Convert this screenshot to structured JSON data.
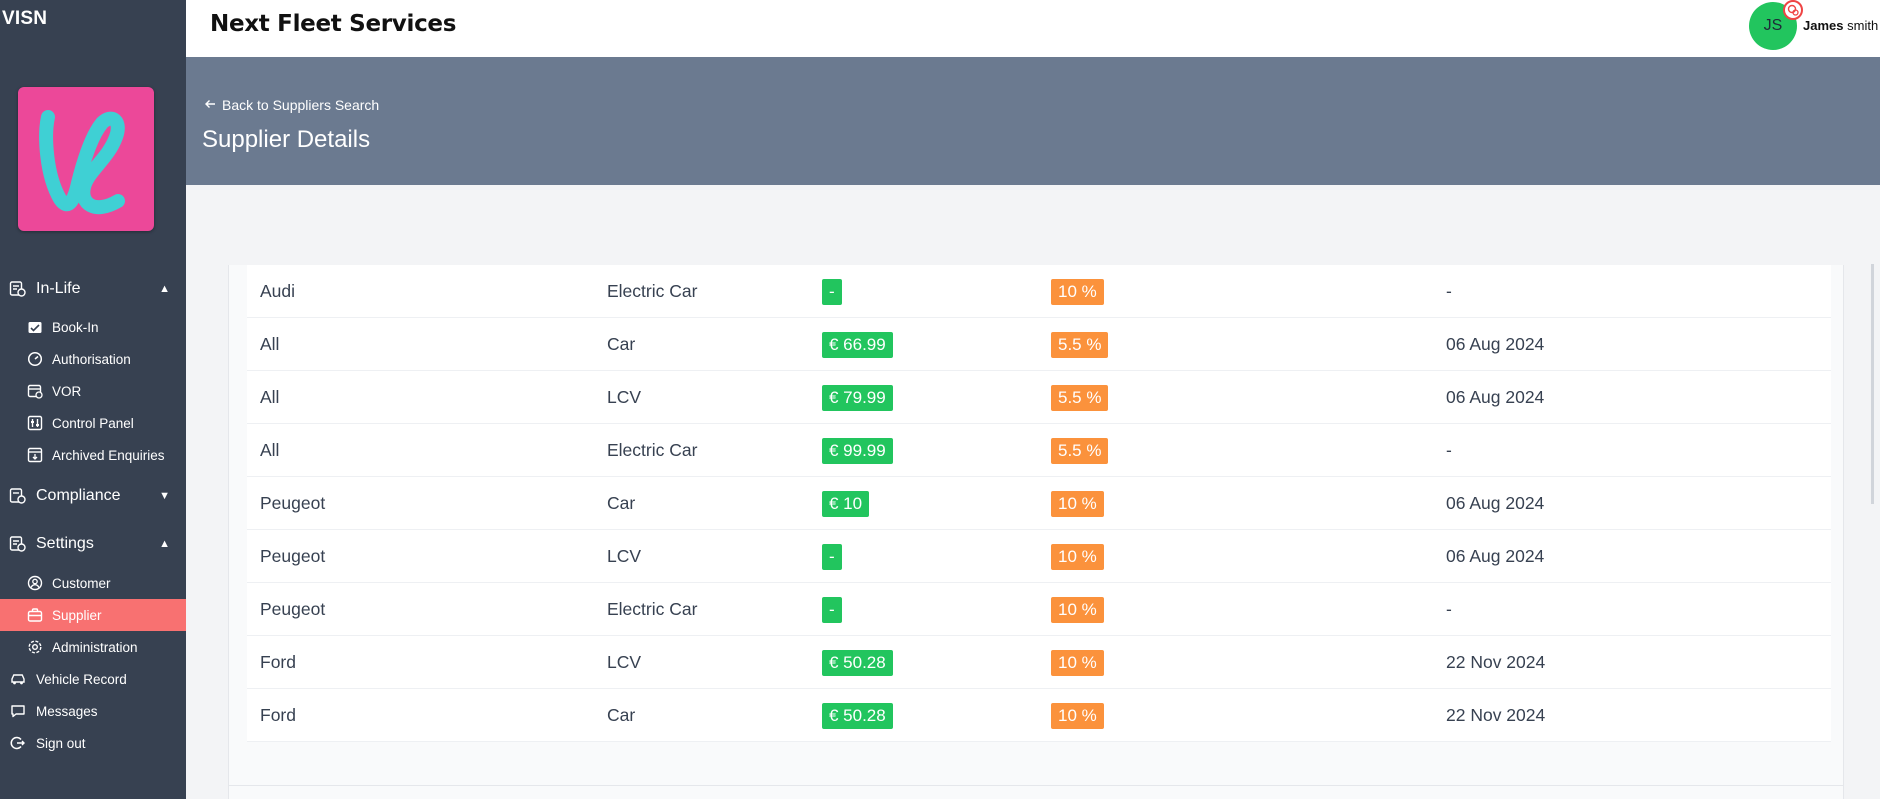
{
  "app": {
    "brand": "VISN"
  },
  "sidebar": {
    "sections": [
      {
        "label": "In-Life",
        "icon": "in-life-icon",
        "chevron": "▲"
      },
      {
        "label": "Compliance",
        "icon": "compliance-icon",
        "chevron": "▼"
      },
      {
        "label": "Settings",
        "icon": "settings-icon",
        "chevron": "▲"
      }
    ],
    "inlife_items": [
      {
        "label": "Book-In",
        "icon": "book-in-icon"
      },
      {
        "label": "Authorisation",
        "icon": "authorisation-icon"
      },
      {
        "label": "VOR",
        "icon": "vor-icon"
      },
      {
        "label": "Control Panel",
        "icon": "control-panel-icon"
      },
      {
        "label": "Archived Enquiries",
        "icon": "archive-icon"
      }
    ],
    "settings_items": [
      {
        "label": "Customer",
        "icon": "customer-icon"
      },
      {
        "label": "Supplier",
        "icon": "supplier-icon",
        "active": true
      },
      {
        "label": "Administration",
        "icon": "administration-icon"
      }
    ],
    "bottom_items": [
      {
        "label": "Vehicle Record",
        "icon": "vehicle-icon"
      },
      {
        "label": "Messages",
        "icon": "messages-icon"
      },
      {
        "label": "Sign out",
        "icon": "sign-out-icon"
      }
    ],
    "active_color": "#f87171"
  },
  "header": {
    "company": "Next Fleet Services",
    "user": {
      "initials": "JS",
      "first": "James",
      "last": "smith"
    }
  },
  "page": {
    "back_link": "Back to Suppliers Search",
    "title": "Supplier Details"
  },
  "rates_table": {
    "rows": [
      {
        "make": "Audi",
        "type": "Electric Car",
        "price": "-",
        "discount": "10 %",
        "date": "-"
      },
      {
        "make": "All",
        "type": "Car",
        "price": "€ 66.99",
        "discount": "5.5 %",
        "date": "06 Aug 2024"
      },
      {
        "make": "All",
        "type": "LCV",
        "price": "€ 79.99",
        "discount": "5.5 %",
        "date": "06 Aug 2024"
      },
      {
        "make": "All",
        "type": "Electric Car",
        "price": "€ 99.99",
        "discount": "5.5 %",
        "date": "-"
      },
      {
        "make": "Peugeot",
        "type": "Car",
        "price": "€ 10",
        "discount": "10 %",
        "date": "06 Aug 2024"
      },
      {
        "make": "Peugeot",
        "type": "LCV",
        "price": "-",
        "discount": "10 %",
        "date": "06 Aug 2024"
      },
      {
        "make": "Peugeot",
        "type": "Electric Car",
        "price": "-",
        "discount": "10 %",
        "date": "-"
      },
      {
        "make": "Ford",
        "type": "LCV",
        "price": "€ 50.28",
        "discount": "10 %",
        "date": "22 Nov 2024"
      },
      {
        "make": "Ford",
        "type": "Car",
        "price": "€ 50.28",
        "discount": "10 %",
        "date": "22 Nov 2024"
      }
    ]
  },
  "colors": {
    "sidebar": "#374151",
    "header_band": "#6b7a90",
    "price_badge": "#22c55e",
    "discount_badge": "#fb923c",
    "avatar": "#22c55e"
  }
}
